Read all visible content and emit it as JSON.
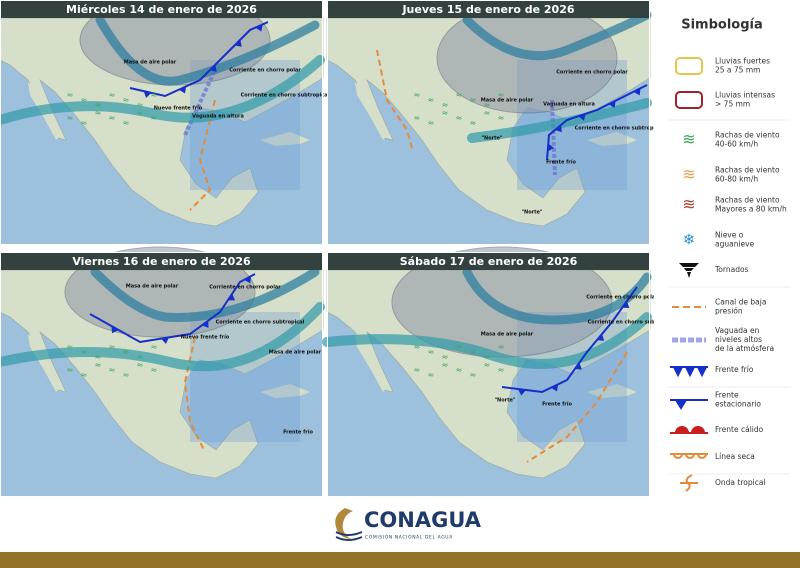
{
  "panels": [
    {
      "title": "Miércoles 14 de enero de 2026",
      "labels": [
        "Masa de aire polar",
        "Nuevo frente frío",
        "Vaguada en altura",
        "Corriente en chorro polar",
        "Corriente en chorro subtropical"
      ]
    },
    {
      "title": "Jueves 15 de enero de 2026",
      "labels": [
        "Masa de aire polar",
        "Vaguada en altura",
        "\"Norte\"",
        "Frente frío",
        "\"Norte\"",
        "Corriente en chorro polar",
        "Corriente en chorro subtropical"
      ]
    },
    {
      "title": "Viernes 16 de enero de 2026",
      "labels": [
        "Masa de aire polar",
        "Nuevo frente frío",
        "Masa de aire polar",
        "Frente frío",
        "Corriente en chorro polar",
        "Corriente en chorro subtropical"
      ]
    },
    {
      "title": "Sábado 17 de enero de 2026",
      "labels": [
        "Masa de aire polar",
        "\"Norte\"",
        "Frente frío",
        "Corriente en chorro polar",
        "Corriente en chorro subtropical"
      ]
    }
  ],
  "legend": {
    "title": "Simbología",
    "items": [
      {
        "lines": [
          "Lluvias fuertes",
          "25 a 75 mm"
        ]
      },
      {
        "lines": [
          "Lluvias intensas",
          "> 75 mm"
        ]
      },
      {
        "lines": [
          "Rachas de viento",
          "40-60 km/h"
        ]
      },
      {
        "lines": [
          "Rachas de viento",
          "60-80 km/h"
        ]
      },
      {
        "lines": [
          "Rachas de viento",
          "Mayores a 80 km/h"
        ]
      },
      {
        "lines": [
          "Nieve o",
          "aguanieve"
        ]
      },
      {
        "lines": [
          "Tornados"
        ]
      },
      {
        "lines": [
          "Canal de baja",
          "presión"
        ]
      },
      {
        "lines": [
          "Vaguada en",
          "niveles altos",
          "de la atmósfera"
        ]
      },
      {
        "lines": [
          "Frente frío"
        ]
      },
      {
        "lines": [
          "Frente",
          "estacionario"
        ]
      },
      {
        "lines": [
          "Frente cálido"
        ]
      },
      {
        "lines": [
          "Línea seca"
        ]
      },
      {
        "lines": [
          "Onda tropical"
        ]
      }
    ]
  },
  "footer": {
    "brand": "CONAGUA",
    "tagline": "COMISIÓN NACIONAL DEL AGUA"
  }
}
